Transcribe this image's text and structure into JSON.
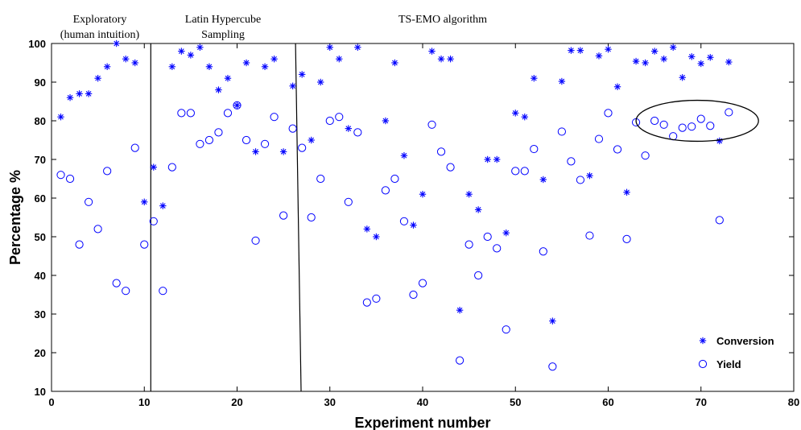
{
  "chart_data": {
    "type": "scatter",
    "title": "",
    "xlabel": "Experiment number",
    "ylabel": "Percentage %",
    "xlim": [
      0,
      80
    ],
    "ylim": [
      10,
      100
    ],
    "xticks": [
      "0",
      "10",
      "20",
      "30",
      "40",
      "50",
      "60",
      "70",
      "80"
    ],
    "yticks": [
      "10",
      "20",
      "30",
      "40",
      "50",
      "60",
      "70",
      "80",
      "90",
      "100"
    ],
    "grid": false,
    "legend_position": "bottom-right",
    "phase_labels": [
      {
        "line1": "Exploratory",
        "line2": "(human intuition)"
      },
      {
        "line1": "Latin Hypercube",
        "line2": "Sampling"
      },
      {
        "line1": "TS-EMO algorithm",
        "line2": ""
      }
    ],
    "phase_dividers": [
      {
        "x_bottom": 10.7,
        "x_top": 10.7
      },
      {
        "x_bottom": 26.9,
        "x_top": 26.3
      }
    ],
    "highlight": {
      "type": "ellipse",
      "cx": 69.6,
      "cy": 80,
      "rx": 6.6,
      "ry": 5.3
    },
    "colors": {
      "series": "#0000ff",
      "axes": "#000000"
    },
    "series": [
      {
        "name": "Conversion",
        "marker": "asterisk",
        "points": [
          [
            1,
            81
          ],
          [
            2,
            86
          ],
          [
            3,
            87
          ],
          [
            4,
            87
          ],
          [
            5,
            91
          ],
          [
            6,
            94
          ],
          [
            7,
            100
          ],
          [
            8,
            96
          ],
          [
            9,
            95
          ],
          [
            10,
            59
          ],
          [
            11,
            68
          ],
          [
            12,
            58
          ],
          [
            13,
            94
          ],
          [
            14,
            98
          ],
          [
            15,
            97
          ],
          [
            16,
            99
          ],
          [
            17,
            94
          ],
          [
            18,
            88
          ],
          [
            19,
            91
          ],
          [
            20,
            84
          ],
          [
            21,
            95
          ],
          [
            22,
            72
          ],
          [
            23,
            94
          ],
          [
            24,
            96
          ],
          [
            25,
            72
          ],
          [
            26,
            89
          ],
          [
            27,
            92
          ],
          [
            28,
            75
          ],
          [
            29,
            90
          ],
          [
            30,
            99
          ],
          [
            31,
            96
          ],
          [
            32,
            78
          ],
          [
            33,
            99
          ],
          [
            34,
            52
          ],
          [
            35,
            50
          ],
          [
            36,
            80
          ],
          [
            37,
            95
          ],
          [
            38,
            71
          ],
          [
            39,
            53
          ],
          [
            40,
            61
          ],
          [
            41,
            98
          ],
          [
            42,
            96
          ],
          [
            43,
            96
          ],
          [
            44,
            31
          ],
          [
            45,
            61
          ],
          [
            46,
            57
          ],
          [
            47,
            70
          ],
          [
            48,
            70
          ],
          [
            49,
            51
          ],
          [
            50,
            82
          ],
          [
            51,
            81
          ],
          [
            52,
            91
          ],
          [
            53,
            64.8
          ],
          [
            54,
            28.2
          ],
          [
            55,
            90.2
          ],
          [
            56,
            98.2
          ],
          [
            57,
            98.2
          ],
          [
            58,
            65.8
          ],
          [
            59,
            96.8
          ],
          [
            60,
            98.5
          ],
          [
            61,
            88.8
          ],
          [
            62,
            61.5
          ],
          [
            63,
            95.4
          ],
          [
            64,
            95
          ],
          [
            65,
            98
          ],
          [
            66,
            96
          ],
          [
            67,
            99
          ],
          [
            68,
            91.2
          ],
          [
            69,
            96.6
          ],
          [
            70,
            94.8
          ],
          [
            71,
            96.4
          ],
          [
            72,
            74.8
          ],
          [
            73,
            95.2
          ]
        ]
      },
      {
        "name": "Yield",
        "marker": "circle",
        "points": [
          [
            1,
            66
          ],
          [
            2,
            65
          ],
          [
            3,
            48
          ],
          [
            4,
            59
          ],
          [
            5,
            52
          ],
          [
            6,
            67
          ],
          [
            7,
            38
          ],
          [
            8,
            36
          ],
          [
            9,
            73
          ],
          [
            10,
            48
          ],
          [
            11,
            54
          ],
          [
            12,
            36
          ],
          [
            13,
            68
          ],
          [
            14,
            82
          ],
          [
            15,
            82
          ],
          [
            16,
            74
          ],
          [
            17,
            75
          ],
          [
            18,
            77
          ],
          [
            19,
            82
          ],
          [
            20,
            84
          ],
          [
            21,
            75
          ],
          [
            22,
            49
          ],
          [
            23,
            74
          ],
          [
            24,
            81
          ],
          [
            25,
            55.5
          ],
          [
            26,
            78
          ],
          [
            27,
            73
          ],
          [
            28,
            55
          ],
          [
            29,
            65
          ],
          [
            30,
            80
          ],
          [
            31,
            81
          ],
          [
            32,
            59
          ],
          [
            33,
            77
          ],
          [
            34,
            33
          ],
          [
            35,
            34
          ],
          [
            36,
            62
          ],
          [
            37,
            65
          ],
          [
            38,
            54
          ],
          [
            39,
            35
          ],
          [
            40,
            38
          ],
          [
            41,
            79
          ],
          [
            42,
            72
          ],
          [
            43,
            68
          ],
          [
            44,
            18
          ],
          [
            45,
            48
          ],
          [
            46,
            40
          ],
          [
            47,
            50
          ],
          [
            48,
            47
          ],
          [
            49,
            26
          ],
          [
            50,
            67
          ],
          [
            51,
            67
          ],
          [
            52,
            72.7
          ],
          [
            53,
            46.2
          ],
          [
            54,
            16.4
          ],
          [
            55,
            77.2
          ],
          [
            56,
            69.5
          ],
          [
            57,
            64.7
          ],
          [
            58,
            50.3
          ],
          [
            59,
            75.3
          ],
          [
            60,
            82
          ],
          [
            61,
            72.6
          ],
          [
            62,
            49.4
          ],
          [
            63,
            79.6
          ],
          [
            64,
            71
          ],
          [
            65,
            80
          ],
          [
            66,
            79
          ],
          [
            67,
            76
          ],
          [
            68,
            78.2
          ],
          [
            69,
            78.5
          ],
          [
            70,
            80.5
          ],
          [
            71,
            78.7
          ],
          [
            72,
            54.3
          ],
          [
            73,
            82.2
          ]
        ]
      }
    ]
  }
}
